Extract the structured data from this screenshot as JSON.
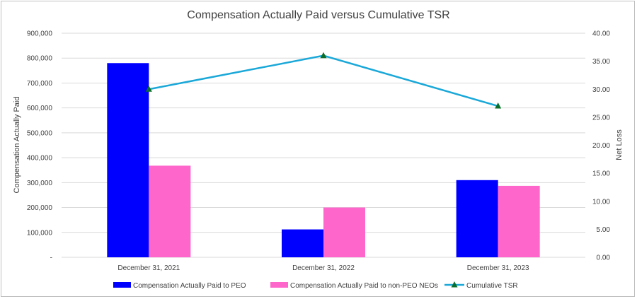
{
  "chart_data": {
    "type": "bar",
    "title": "Compensation Actually Paid versus  Cumulative TSR",
    "categories": [
      "December 31, 2021",
      "December 31, 2022",
      "December 31, 2023"
    ],
    "ylabel": "Compensation Actually Paid",
    "y2label": "Net Loss",
    "ylim": [
      0,
      900000
    ],
    "y2lim": [
      0,
      40
    ],
    "yticks": [
      0,
      100000,
      200000,
      300000,
      400000,
      500000,
      600000,
      700000,
      800000,
      900000
    ],
    "ytick_labels": [
      "-",
      "100,000",
      "200,000",
      "300,000",
      "400,000",
      "500,000",
      "600,000",
      "700,000",
      "800,000",
      "900,000"
    ],
    "y2ticks": [
      0,
      5,
      10,
      15,
      20,
      25,
      30,
      35,
      40
    ],
    "y2tick_labels": [
      "0.00",
      "5.00",
      "10.00",
      "15.00",
      "20.00",
      "25.00",
      "30.00",
      "35.00",
      "40.00"
    ],
    "grid": true,
    "legend_position": "bottom",
    "series": [
      {
        "name": "Compensation Actually Paid  to PEO",
        "kind": "bar",
        "color": "#0000ff",
        "values": [
          780000,
          112000,
          310000
        ]
      },
      {
        "name": "Compensation Actually Paid to non-PEO NEOs",
        "kind": "bar",
        "color": "#ff66cc",
        "values": [
          368000,
          200000,
          287000
        ]
      },
      {
        "name": "Cumulative TSR",
        "kind": "line",
        "axis": "right",
        "color": "#1aa8d8",
        "marker_color": "#0b6e2a",
        "values": [
          30.0,
          36.0,
          27.0
        ]
      }
    ]
  }
}
